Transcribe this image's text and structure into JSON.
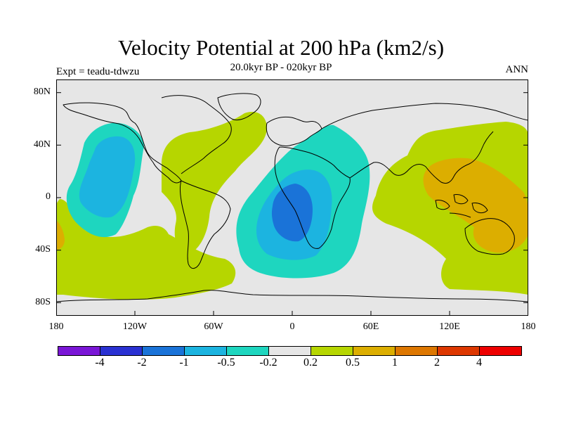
{
  "title": "Velocity Potential at 200 hPa (km2/s)",
  "subtitle": "20.0kyr BP - 020kyr BP",
  "expt_label": "Expt = teadu-tdwzu",
  "season": "ANN",
  "lat_labels": [
    "80N",
    "40N",
    "0",
    "40S",
    "80S"
  ],
  "lon_labels": [
    "180",
    "120W",
    "60W",
    "0",
    "60E",
    "120E",
    "180"
  ],
  "colorbar": {
    "colors": [
      "#7a16d6",
      "#2a31d2",
      "#1a73d8",
      "#1cb4e0",
      "#1ed6bf",
      "#e6e6e6",
      "#b6d600",
      "#dcae00",
      "#dd7700",
      "#dd3700",
      "#ee0000"
    ],
    "labels": [
      "-4",
      "-2",
      "-1",
      "-0.5",
      "-0.2",
      "0.2",
      "0.5",
      "1",
      "2",
      "4"
    ]
  },
  "legend_colors": {
    "neg_02": "#1ed6bf",
    "neg_05": "#1cb4e0",
    "neg_1": "#1a73d8",
    "pos_02": "#b6d600",
    "pos_05": "#dcae00",
    "neutral": "#e6e6e6"
  }
}
